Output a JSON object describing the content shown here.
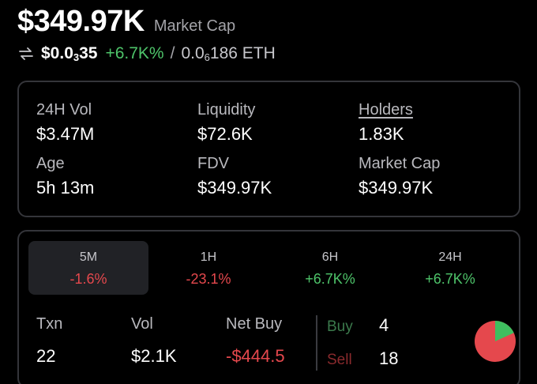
{
  "header": {
    "market_cap_value": "$349.97K",
    "market_cap_label": "Market Cap"
  },
  "price": {
    "icon": "swap-arrows-icon",
    "usd_prefix": "$0.0",
    "usd_sub": "3",
    "usd_suffix": "35",
    "change": "+6.7K%",
    "separator": "/",
    "eth_prefix": "0.0",
    "eth_sub": "6",
    "eth_suffix": "186 ETH"
  },
  "stats": {
    "vol24h": {
      "label": "24H Vol",
      "value": "$3.47M"
    },
    "liquidity": {
      "label": "Liquidity",
      "value": "$72.6K"
    },
    "holders": {
      "label": "Holders",
      "value": "1.83K"
    },
    "age": {
      "label": "Age",
      "value": "5h 13m"
    },
    "fdv": {
      "label": "FDV",
      "value": "$349.97K"
    },
    "market_cap": {
      "label": "Market Cap",
      "value": "$349.97K"
    }
  },
  "tabs": [
    {
      "label": "5M",
      "value": "-1.6%",
      "active": true
    },
    {
      "label": "1H",
      "value": "-23.1%"
    },
    {
      "label": "6H",
      "value": "+6.7K%"
    },
    {
      "label": "24H",
      "value": "+6.7K%"
    }
  ],
  "txn": {
    "txn": {
      "label": "Txn",
      "value": "22"
    },
    "vol": {
      "label": "Vol",
      "value": "$2.1K"
    },
    "net_buy": {
      "label": "Net Buy",
      "value": "-$444.5"
    },
    "buy": {
      "label": "Buy",
      "count": "4"
    },
    "sell": {
      "label": "Sell",
      "count": "18"
    }
  },
  "pie": {
    "buy_fraction": 0.1818,
    "buy_color": "#3fbf5f",
    "sell_color": "#e5484d"
  },
  "colors": {
    "positive": "#4ec46a",
    "negative": "#e5484d",
    "card_border": "#34353a"
  }
}
